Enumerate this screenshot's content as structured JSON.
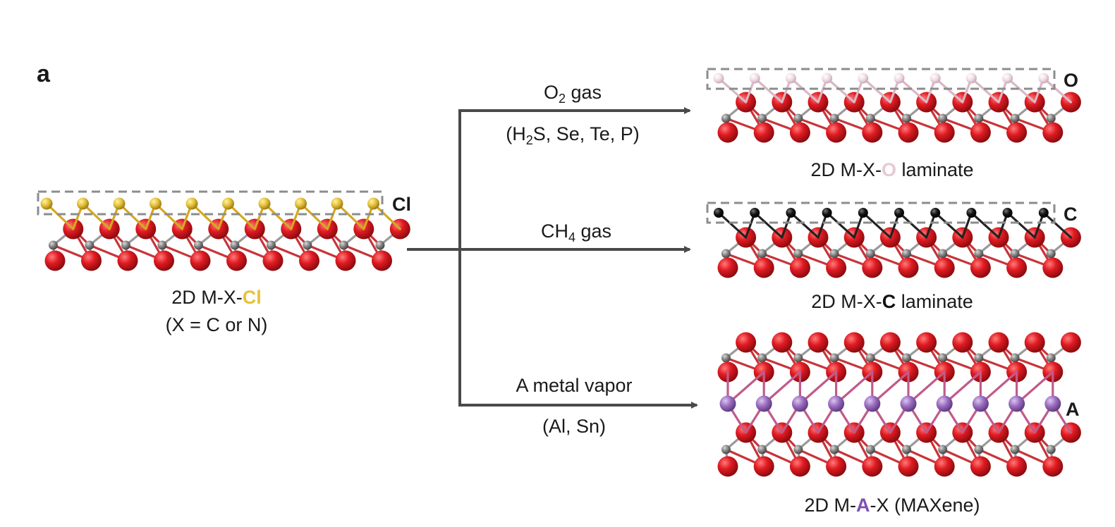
{
  "panel_label": "a",
  "colors": {
    "metal": "#d9141a",
    "x_atom": "#7a7a7a",
    "cl_atom": "#e6c23a",
    "o_atom": "#efdbe4",
    "c_atom": "#111111",
    "a_atom": "#9a6cc0",
    "arrow": "#4a4a4a",
    "box": "#8c8c8c"
  },
  "precursor": {
    "termination_tag": "Cl",
    "name_prefix": "2D M-X-",
    "name_highlight": "Cl",
    "subtitle": "(X = C or N)"
  },
  "routes": [
    {
      "id": "oxygen",
      "reagent_lead": "O",
      "reagent_sub": "2",
      "reagent_tail": " gas",
      "alt_1": "(H",
      "alt_sub": "2",
      "alt_2": "S, Se, Te, P)",
      "product_tag": "O",
      "product_prefix": "2D M-X-",
      "product_highlight": "O",
      "product_suffix": " laminate"
    },
    {
      "id": "carbon",
      "reagent_lead": "CH",
      "reagent_sub": "4",
      "reagent_tail": " gas",
      "product_tag": "C",
      "product_prefix": "2D M-X-",
      "product_highlight": "C",
      "product_suffix": " laminate"
    },
    {
      "id": "metal",
      "reagent": "A metal vapor",
      "alt": "(Al, Sn)",
      "product_tag": "A",
      "product_prefix": "2D M-",
      "product_highlight": "A",
      "product_suffix": "-X  (MAXene)"
    }
  ]
}
